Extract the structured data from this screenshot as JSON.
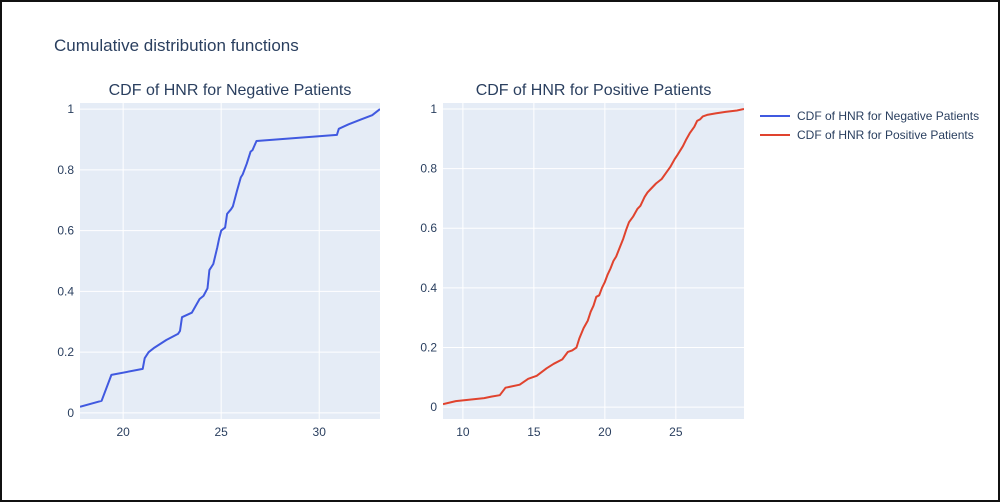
{
  "title": "Cumulative distribution functions",
  "colors": {
    "plot_bg": "#E5ECF6",
    "grid": "#ffffff",
    "text": "#2a3f5f"
  },
  "chart_data": [
    {
      "type": "line",
      "title": "CDF of HNR for Negative Patients",
      "xlim": [
        17.8,
        33.1
      ],
      "ylim": [
        -0.02,
        1.02
      ],
      "xticks": [
        20,
        25,
        30
      ],
      "yticks": [
        0,
        0.2,
        0.4,
        0.6,
        0.8,
        1
      ],
      "ytick_labels": [
        "0",
        "0.2",
        "0.4",
        "0.6",
        "0.8",
        "1"
      ],
      "xtick_labels": [
        "20",
        "25",
        "30"
      ],
      "grid": true,
      "series": [
        {
          "name": "CDF of HNR for Negative Patients",
          "color": "#4059E0",
          "x": [
            17.8,
            18.9,
            19.4,
            21.0,
            21.1,
            21.3,
            21.6,
            22.2,
            22.8,
            22.9,
            23.0,
            23.5,
            23.9,
            24.1,
            24.3,
            24.4,
            24.6,
            24.8,
            24.9,
            25.0,
            25.2,
            25.3,
            25.5,
            25.6,
            25.8,
            26.0,
            26.1,
            26.3,
            26.5,
            26.6,
            26.8,
            30.9,
            31.0,
            31.5,
            32.1,
            32.7,
            33.1
          ],
          "y": [
            0.02,
            0.04,
            0.125,
            0.145,
            0.18,
            0.2,
            0.215,
            0.24,
            0.26,
            0.27,
            0.315,
            0.33,
            0.375,
            0.385,
            0.41,
            0.47,
            0.49,
            0.545,
            0.575,
            0.6,
            0.61,
            0.655,
            0.67,
            0.68,
            0.73,
            0.775,
            0.785,
            0.82,
            0.86,
            0.865,
            0.895,
            0.915,
            0.935,
            0.95,
            0.965,
            0.98,
            1.0
          ]
        }
      ]
    },
    {
      "type": "line",
      "title": "CDF of HNR for Positive Patients",
      "xlim": [
        8.6,
        29.8
      ],
      "ylim": [
        -0.04,
        1.02
      ],
      "xticks": [
        10,
        15,
        20,
        25
      ],
      "yticks": [
        0,
        0.2,
        0.4,
        0.6,
        0.8,
        1
      ],
      "ytick_labels": [
        "0",
        "0.2",
        "0.4",
        "0.6",
        "0.8",
        "1"
      ],
      "xtick_labels": [
        "10",
        "15",
        "20",
        "25"
      ],
      "grid": true,
      "series": [
        {
          "name": "CDF of HNR for Positive Patients",
          "color": "#E0432E",
          "x": [
            8.6,
            9.5,
            10.5,
            11.5,
            12.0,
            12.6,
            13.0,
            14.0,
            14.6,
            15.2,
            15.9,
            16.4,
            17.0,
            17.4,
            17.7,
            18.0,
            18.2,
            18.5,
            18.8,
            19.0,
            19.2,
            19.4,
            19.6,
            19.8,
            20.0,
            20.2,
            20.4,
            20.6,
            20.8,
            21.0,
            21.3,
            21.5,
            21.7,
            22.0,
            22.3,
            22.5,
            22.8,
            23.0,
            23.3,
            23.6,
            24.0,
            24.3,
            24.6,
            24.9,
            25.1,
            25.3,
            25.5,
            25.7,
            26.0,
            26.3,
            26.5,
            26.7,
            26.9,
            27.2,
            27.8,
            28.5,
            29.3,
            29.8
          ],
          "y": [
            0.01,
            0.02,
            0.025,
            0.03,
            0.035,
            0.04,
            0.065,
            0.075,
            0.095,
            0.105,
            0.13,
            0.145,
            0.16,
            0.185,
            0.19,
            0.2,
            0.23,
            0.265,
            0.29,
            0.32,
            0.34,
            0.37,
            0.375,
            0.4,
            0.42,
            0.445,
            0.465,
            0.49,
            0.505,
            0.53,
            0.565,
            0.595,
            0.62,
            0.64,
            0.665,
            0.675,
            0.705,
            0.72,
            0.735,
            0.75,
            0.765,
            0.785,
            0.805,
            0.83,
            0.845,
            0.86,
            0.875,
            0.895,
            0.92,
            0.94,
            0.96,
            0.965,
            0.975,
            0.98,
            0.985,
            0.99,
            0.995,
            1.0
          ]
        }
      ]
    }
  ],
  "legend": {
    "position": "top-right",
    "items": [
      {
        "label": "CDF of HNR for Negative Patients",
        "color": "#4059E0"
      },
      {
        "label": "CDF of HNR for Positive Patients",
        "color": "#E0432E"
      }
    ]
  }
}
